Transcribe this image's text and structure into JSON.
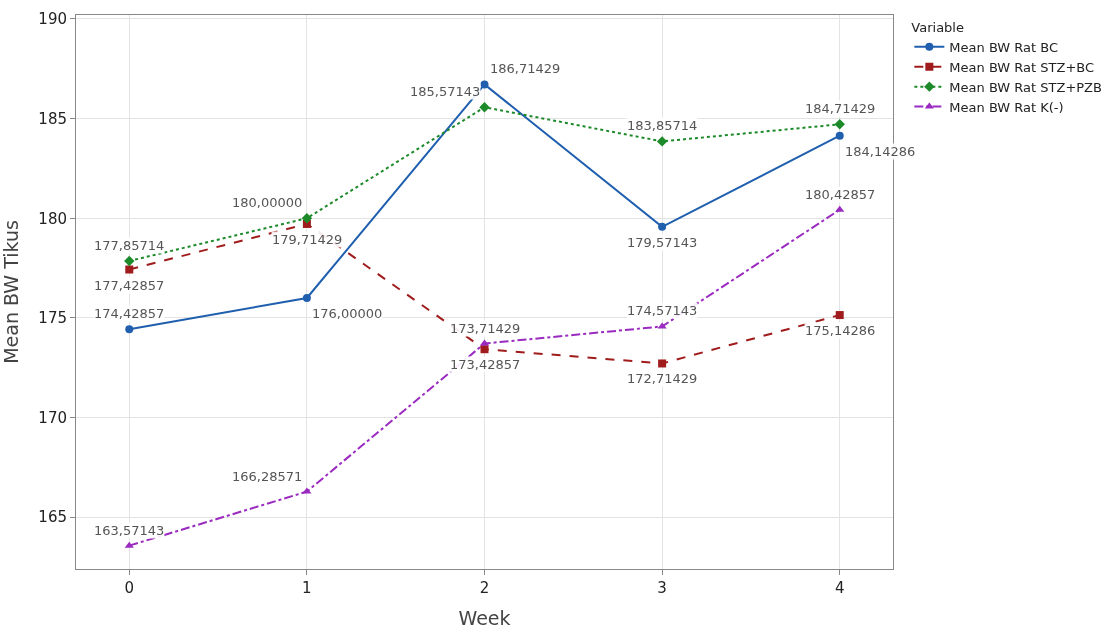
{
  "chart_data": {
    "type": "line",
    "xlabel": "Week",
    "ylabel": "Mean BW Tikus",
    "legend_title": "Variable",
    "x": [
      0,
      1,
      2,
      3,
      4
    ],
    "xlim": [
      -0.3,
      4.3
    ],
    "xticks": [
      0,
      1,
      2,
      3,
      4
    ],
    "ylim": [
      162.4,
      190.2
    ],
    "yticks": [
      165,
      170,
      175,
      180,
      185,
      190
    ],
    "grid": true,
    "legend": "top right",
    "series": [
      {
        "name": "Mean BW Rat BC",
        "color": "#1f5fae",
        "marker": "circle",
        "line_style": "solid",
        "values": [
          174.42857,
          176.0,
          186.71429,
          179.57143,
          184.14286
        ],
        "value_labels": [
          "174,42857",
          "176,00000",
          "186,71429",
          "179,57143",
          "184,14286"
        ]
      },
      {
        "name": "Mean BW Rat STZ+BC",
        "color": "#a01c1c",
        "marker": "square",
        "line_style": "dashed",
        "values": [
          177.42857,
          179.71429,
          173.42857,
          172.71429,
          175.14286
        ],
        "value_labels": [
          "177,42857",
          "179,71429",
          "173,42857",
          "172,71429",
          "175,14286"
        ]
      },
      {
        "name": "Mean BW Rat STZ+PZB",
        "color": "#1d8a2a",
        "marker": "diamond",
        "line_style": "dotted",
        "values": [
          177.85714,
          180.0,
          185.57143,
          183.85714,
          184.71429
        ],
        "value_labels": [
          "177,85714",
          "180,00000",
          "185,57143",
          "183,85714",
          "184,71429"
        ]
      },
      {
        "name": "Mean BW Rat K(-)",
        "color": "#9a2ac0",
        "marker": "triangle",
        "line_style": "dashdot",
        "values": [
          163.57143,
          166.28571,
          173.71429,
          174.57143,
          180.42857
        ],
        "value_labels": [
          "163,57143",
          "166,28571",
          "173,71429",
          "174,57143",
          "180,42857"
        ]
      }
    ]
  }
}
